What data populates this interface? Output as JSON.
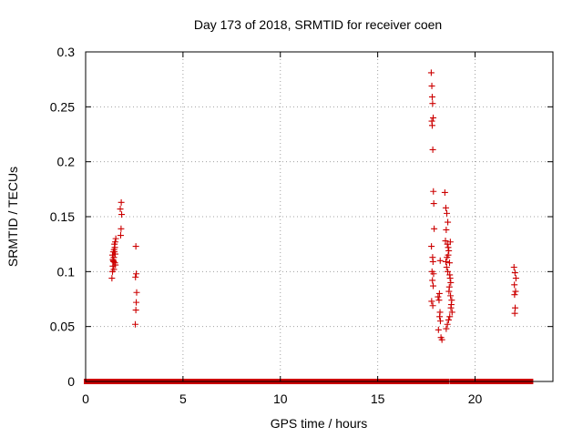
{
  "chart_data": {
    "type": "scatter",
    "title": "Day 173 of 2018, SRMTID for receiver coen",
    "xlabel": "GPS time / hours",
    "ylabel": "SRMTID / TECUs",
    "xlim": [
      0,
      24
    ],
    "ylim": [
      0,
      0.3
    ],
    "xticks": [
      0,
      5,
      10,
      15,
      20
    ],
    "xtick_labels": [
      "0",
      "5",
      "10",
      "15",
      "20"
    ],
    "yticks": [
      0,
      0.05,
      0.1,
      0.15,
      0.2,
      0.25,
      0.3
    ],
    "ytick_labels": [
      "0",
      "0.05",
      "0.1",
      "0.15",
      "0.2",
      "0.25",
      "0.3"
    ],
    "grid": true,
    "marker": "+",
    "color": "#cc0000",
    "zero_baseline_segments": [
      [
        0.05,
        1.35
      ],
      [
        1.6,
        2.55
      ],
      [
        2.7,
        17.95
      ],
      [
        18.2,
        18.3
      ],
      [
        18.45,
        18.55
      ],
      [
        18.85,
        22.85
      ]
    ],
    "series": [
      {
        "name": "SRMTID",
        "x": [
          1.35,
          1.38,
          1.4,
          1.42,
          1.45,
          1.48,
          1.5,
          1.52,
          1.55,
          1.38,
          1.42,
          1.46,
          1.5,
          1.53,
          1.45,
          1.4,
          1.48,
          1.52,
          1.44,
          1.8,
          1.82,
          1.85,
          1.78,
          1.83,
          2.55,
          2.58,
          2.6,
          2.62,
          2.56,
          2.6,
          2.58,
          17.75,
          17.78,
          17.8,
          17.82,
          17.85,
          17.8,
          17.78,
          17.83,
          17.86,
          17.88,
          17.9,
          17.76,
          17.82,
          17.84,
          17.79,
          17.87,
          17.81,
          17.85,
          17.77,
          17.83,
          18.1,
          18.15,
          18.2,
          18.18,
          18.22,
          18.12,
          18.25,
          18.3,
          18.17,
          18.21,
          18.45,
          18.5,
          18.55,
          18.6,
          18.52,
          18.48,
          18.58,
          18.62,
          18.65,
          18.56,
          18.5,
          18.54,
          18.6,
          18.7,
          18.72,
          18.75,
          18.68,
          18.66,
          18.74,
          18.8,
          18.78,
          18.76,
          18.82,
          18.7,
          18.64,
          18.58,
          18.52,
          18.62,
          18.69,
          18.73,
          22.0,
          22.05,
          22.1,
          22.02,
          22.08,
          22.03,
          22.06,
          22.04
        ],
        "y": [
          0.094,
          0.1,
          0.105,
          0.11,
          0.113,
          0.118,
          0.122,
          0.127,
          0.13,
          0.115,
          0.118,
          0.12,
          0.108,
          0.106,
          0.102,
          0.111,
          0.125,
          0.116,
          0.109,
          0.133,
          0.139,
          0.152,
          0.157,
          0.163,
          0.052,
          0.065,
          0.072,
          0.081,
          0.095,
          0.098,
          0.123,
          0.281,
          0.269,
          0.259,
          0.253,
          0.24,
          0.233,
          0.237,
          0.211,
          0.173,
          0.162,
          0.139,
          0.123,
          0.113,
          0.109,
          0.1,
          0.098,
          0.092,
          0.087,
          0.073,
          0.069,
          0.077,
          0.074,
          0.063,
          0.059,
          0.055,
          0.047,
          0.04,
          0.038,
          0.08,
          0.11,
          0.172,
          0.158,
          0.153,
          0.145,
          0.138,
          0.128,
          0.125,
          0.122,
          0.119,
          0.113,
          0.109,
          0.104,
          0.1,
          0.097,
          0.094,
          0.09,
          0.086,
          0.082,
          0.078,
          0.074,
          0.07,
          0.067,
          0.063,
          0.059,
          0.056,
          0.052,
          0.048,
          0.115,
          0.108,
          0.127,
          0.104,
          0.099,
          0.094,
          0.088,
          0.082,
          0.079,
          0.067,
          0.062
        ]
      }
    ]
  }
}
